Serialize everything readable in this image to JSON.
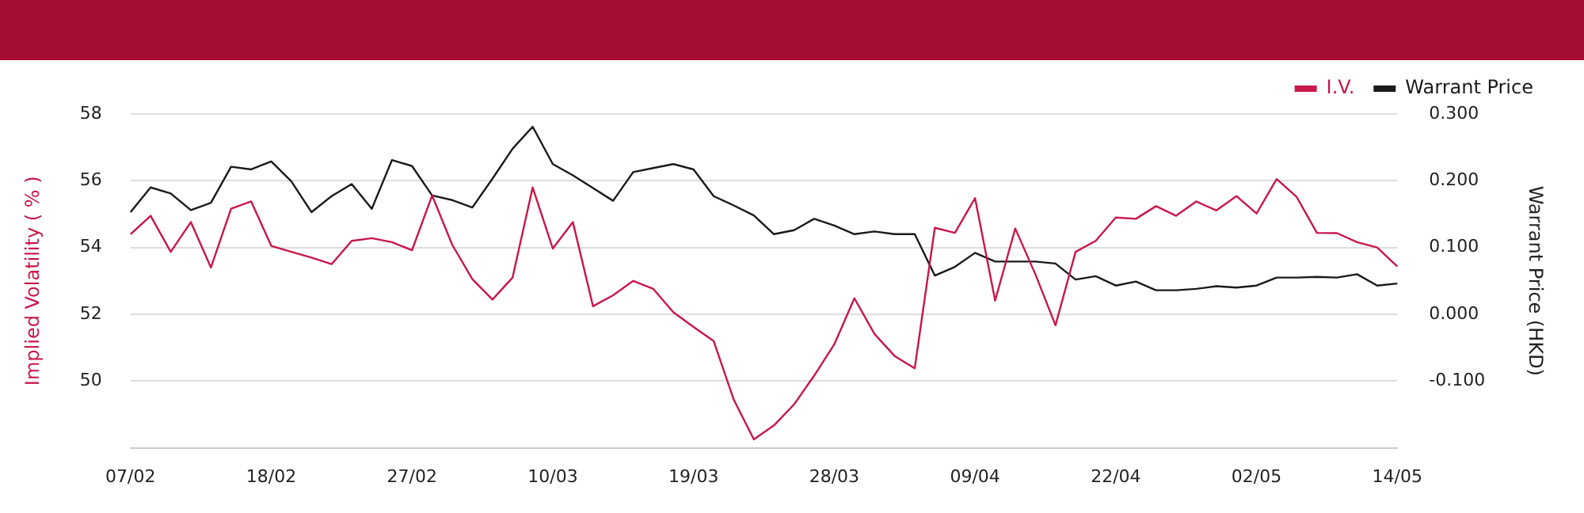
{
  "chart_data": {
    "type": "line",
    "ylabel": "Implied Volatility ( % )",
    "y2label": "Warrant Price (HKD)",
    "categories": [
      "07/02",
      null,
      null,
      null,
      null,
      null,
      null,
      "18/02",
      null,
      null,
      null,
      null,
      null,
      null,
      "27/02",
      null,
      null,
      null,
      null,
      null,
      null,
      "10/03",
      null,
      null,
      null,
      null,
      null,
      null,
      "19/03",
      null,
      null,
      null,
      null,
      null,
      null,
      "28/03",
      null,
      null,
      null,
      null,
      null,
      null,
      "09/04",
      null,
      null,
      null,
      null,
      null,
      null,
      "22/04",
      null,
      null,
      null,
      null,
      null,
      null,
      "02/05",
      null,
      null,
      null,
      null,
      null,
      null,
      "14/05"
    ],
    "series": [
      {
        "name": "I.V.",
        "color": "#c8174a",
        "values": [
          54.4,
          54.95,
          53.87,
          54.76,
          53.4,
          55.16,
          55.38,
          54.05,
          53.87,
          53.7,
          53.5,
          54.2,
          54.28,
          54.16,
          53.92,
          55.56,
          54.08,
          53.05,
          52.44,
          53.1,
          55.8,
          53.97,
          54.76,
          52.24,
          52.57,
          53.0,
          52.76,
          52.06,
          51.62,
          51.2,
          49.44,
          48.25,
          48.67,
          49.3,
          50.16,
          51.1,
          52.48,
          51.41,
          50.75,
          50.38,
          54.59,
          54.44,
          55.48,
          52.41,
          54.57,
          53.2,
          51.67,
          53.87,
          54.2,
          54.9,
          54.86,
          55.24,
          54.95,
          55.38,
          55.11,
          55.54,
          55.02,
          56.05,
          55.51,
          54.44,
          54.43,
          54.16,
          54.0,
          53.43
        ]
      },
      {
        "name": "Warrant Price",
        "color": "#1a1a1a",
        "axis": "y2",
        "values": [
          0.153,
          0.19,
          0.181,
          0.156,
          0.167,
          0.221,
          0.217,
          0.229,
          0.199,
          0.153,
          0.177,
          0.195,
          0.158,
          0.231,
          0.222,
          0.178,
          0.171,
          0.16,
          0.203,
          0.248,
          0.281,
          0.225,
          0.208,
          0.189,
          0.17,
          0.213,
          0.219,
          0.225,
          0.217,
          0.177,
          0.163,
          0.148,
          0.12,
          0.126,
          0.143,
          0.133,
          0.12,
          0.124,
          0.12,
          0.12,
          0.058,
          0.071,
          0.092,
          0.079,
          0.079,
          0.079,
          0.076,
          0.052,
          0.057,
          0.043,
          0.049,
          0.036,
          0.036,
          0.038,
          0.042,
          0.04,
          0.043,
          0.055,
          0.055,
          0.056,
          0.055,
          0.06,
          0.043,
          0.046
        ]
      }
    ],
    "ylim": [
      48,
      58
    ],
    "yticks": [
      50,
      52,
      54,
      56,
      58
    ],
    "y2lim": [
      -0.2,
      0.3
    ],
    "y2ticks": [
      {
        "value": -0.1,
        "label": "-0.100"
      },
      {
        "value": 0,
        "label": "0.000"
      },
      {
        "value": 0.1,
        "label": "0.100"
      },
      {
        "value": 0.2,
        "label": "0.200"
      },
      {
        "value": 0.3,
        "label": "0.300"
      }
    ],
    "grid": "y",
    "legend": "top right",
    "marker": "none",
    "line_style": "solid"
  }
}
